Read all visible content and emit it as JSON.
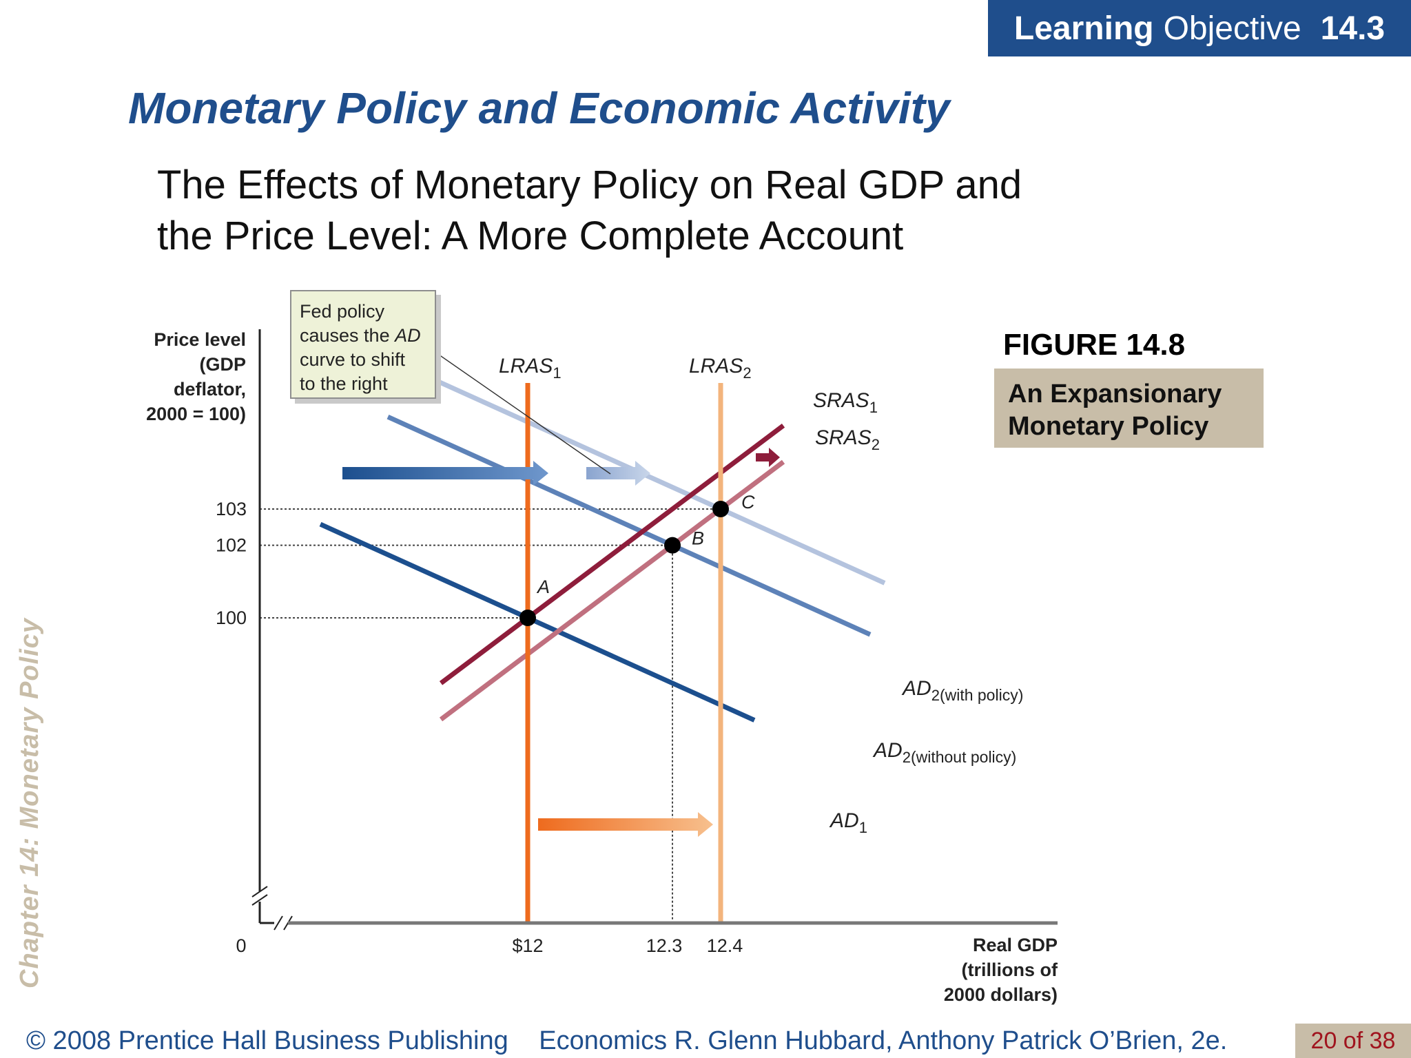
{
  "header": {
    "badge_bold": "Learning",
    "badge_text": "Objective",
    "badge_number": "14.3",
    "badge_color": "#1f4e8c"
  },
  "slide": {
    "title": "Monetary Policy and Economic Activity",
    "subtitle_line1": "The Effects of Monetary Policy on Real GDP and",
    "subtitle_line2": "the Price Level:  A More Complete Account",
    "side_label": "Chapter 14:  Monetary Policy"
  },
  "figure": {
    "number": "FIGURE 14.8",
    "caption_line1": "An Expansionary",
    "caption_line2": "Monetary Policy",
    "caption_bg": "#c8bda8"
  },
  "callout": {
    "line1": "Fed policy",
    "line2_pre": "causes the ",
    "line2_em": "AD",
    "line3": "curve to shift",
    "line4": "to the right"
  },
  "footer": {
    "copyright": "© 2008 Prentice Hall Business Publishing",
    "book": "Economics  R. Glenn Hubbard, Anthony Patrick O’Brien, 2e.",
    "page": "20 of 38",
    "page_bg": "#c8bda8"
  },
  "chart_data": {
    "type": "line",
    "ylabel_lines": [
      "Price level",
      "(GDP",
      "deflator,",
      "2000 = 100)"
    ],
    "xlabel_lines": [
      "Real GDP",
      "(trillions of",
      "2000 dollars)"
    ],
    "origin_label": "0",
    "y_ticks": [
      {
        "value": 100,
        "label": "100"
      },
      {
        "value": 102,
        "label": "102"
      },
      {
        "value": 103,
        "label": "103"
      }
    ],
    "x_ticks": [
      {
        "value": 12.0,
        "label": "$12"
      },
      {
        "value": 12.3,
        "label": "12.3"
      },
      {
        "value": 12.4,
        "label": "12.4"
      }
    ],
    "vertical_lines": [
      {
        "name": "LRAS",
        "sub": "1",
        "x": 12.0,
        "color": "#ee6b1e"
      },
      {
        "name": "LRAS",
        "sub": "2",
        "x": 12.4,
        "color": "#f3b47c"
      }
    ],
    "supply_curves": [
      {
        "name": "SRAS",
        "sub": "1",
        "color": "#8e1d3b",
        "through": [
          12.0,
          100
        ],
        "slope_per_trillion": 10.0
      },
      {
        "name": "SRAS",
        "sub": "2",
        "color": "#c0707f",
        "through": [
          12.3,
          102
        ],
        "slope_per_trillion": 10.0
      }
    ],
    "demand_curves": [
      {
        "name": "AD",
        "sub": "1",
        "suffix": "",
        "color": "#1c4f8e",
        "through": [
          12.0,
          100
        ],
        "slope_per_trillion": -6.0
      },
      {
        "name": "AD",
        "sub": "2",
        "suffix": "(without policy)",
        "color": "#5d82b8",
        "through": [
          12.3,
          102
        ],
        "slope_per_trillion": -6.0
      },
      {
        "name": "AD",
        "sub": "2",
        "suffix": "(with policy)",
        "color": "#b4c3de",
        "through": [
          12.4,
          103
        ],
        "slope_per_trillion": -6.0
      }
    ],
    "points": [
      {
        "label": "A",
        "x": 12.0,
        "y": 100
      },
      {
        "label": "B",
        "x": 12.3,
        "y": 102
      },
      {
        "label": "C",
        "x": 12.4,
        "y": 103
      }
    ],
    "axis_breaks": true,
    "grid": false
  }
}
